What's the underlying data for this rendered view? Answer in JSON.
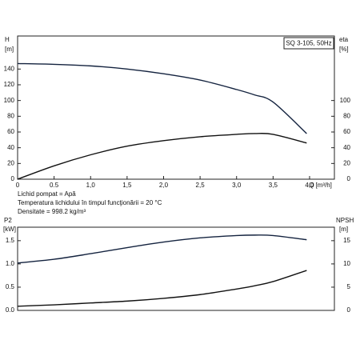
{
  "chart_data": [
    {
      "type": "line",
      "title": "SQ 3-105, 50Hz",
      "ylabel": "H",
      "yunit": "[m]",
      "y2label": "eta",
      "y2unit": "[%]",
      "xlabel": "Q [m³/h]",
      "x": [
        0,
        0.5,
        1.0,
        1.5,
        2.0,
        2.5,
        3.0,
        3.25,
        3.5,
        3.96
      ],
      "series": [
        {
          "name": "H",
          "color": "#14233f",
          "values": [
            147,
            146,
            144,
            140,
            134,
            126,
            114,
            107,
            98,
            58
          ]
        },
        {
          "name": "eta",
          "color": "#111111",
          "axis": "y2",
          "values": [
            0,
            17,
            31,
            42,
            49,
            54,
            57,
            58,
            57,
            46
          ]
        }
      ],
      "xlim": [
        0,
        4.34
      ],
      "xticks": [
        0,
        0.5,
        {
          "value": 1.0,
          "label": "1,0"
        },
        {
          "value": 1.5,
          "label": "1,5"
        },
        {
          "value": 2.0,
          "label": "2,0"
        },
        {
          "value": 2.5,
          "label": "2,5"
        },
        {
          "value": 3.0,
          "label": "3,0"
        },
        {
          "value": 3.5,
          "label": "3,5"
        },
        {
          "value": 4.0,
          "label": "4,0"
        }
      ],
      "ylim": [
        0,
        182
      ],
      "yticks": [
        0,
        20,
        40,
        60,
        80,
        100,
        120,
        140
      ],
      "y2lim": [
        0,
        182
      ],
      "y2ticks": [
        0,
        20,
        40,
        60,
        80,
        100
      ],
      "annotations": [
        "Lichid pompat = Apă",
        "Temperatura lichidului în timpul funcţionării = 20 °C",
        "Densitate = 998.2 kg/m³"
      ]
    },
    {
      "type": "line",
      "ylabel": "P2",
      "yunit": "[kW]",
      "y2label": "NPSH",
      "y2unit": "[m]",
      "x": [
        0,
        0.5,
        1.0,
        1.5,
        2.0,
        2.5,
        3.0,
        3.25,
        3.5,
        3.96
      ],
      "series": [
        {
          "name": "P2",
          "color": "#14233f",
          "values": [
            1.02,
            1.1,
            1.22,
            1.35,
            1.47,
            1.56,
            1.61,
            1.62,
            1.61,
            1.52
          ]
        },
        {
          "name": "NPSH",
          "color": "#111111",
          "axis": "y2",
          "values": [
            0.9,
            1.2,
            1.6,
            2.0,
            2.6,
            3.4,
            4.6,
            5.3,
            6.2,
            8.6
          ]
        }
      ],
      "xlim": [
        0,
        4.34
      ],
      "ylim": [
        0,
        1.79
      ],
      "yticks": [
        {
          "value": 0,
          "label": "0.0"
        },
        0.5,
        {
          "value": 1,
          "label": "1.0"
        },
        1.5
      ],
      "y2lim": [
        0,
        17.9
      ],
      "y2ticks": [
        0,
        5,
        10,
        15
      ]
    }
  ]
}
